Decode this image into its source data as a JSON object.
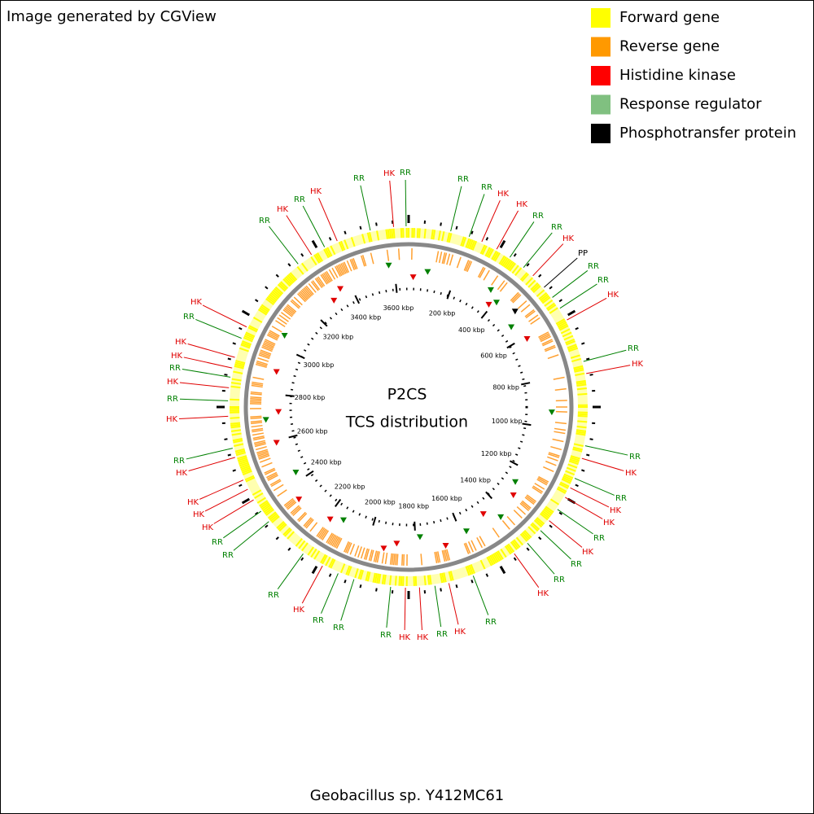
{
  "header": {
    "title": "Image generated by CGView"
  },
  "legend": {
    "items": [
      {
        "label": "Forward gene",
        "color": "#ffff00"
      },
      {
        "label": "Reverse gene",
        "color": "#ff9900"
      },
      {
        "label": "Histidine kinase",
        "color": "#ff0000"
      },
      {
        "label": "Response regulator",
        "color": "#80c080"
      },
      {
        "label": "Phosphotransfer protein",
        "color": "#000000"
      }
    ]
  },
  "center": {
    "title": "P2CS",
    "subtitle": "TCS distribution"
  },
  "footer": {
    "organism": "Geobacillus sp. Y412MC61"
  },
  "ruler": {
    "labels": [
      "200 kbp",
      "400 kbp",
      "600 kbp",
      "800 kbp",
      "1000 kbp",
      "1200 kbp",
      "1400 kbp",
      "1600 kbp",
      "1800 kbp",
      "2000 kbp",
      "2200 kbp",
      "2400 kbp",
      "2600 kbp",
      "2800 kbp",
      "3000 kbp",
      "3200 kbp",
      "3400 kbp",
      "3600 kbp"
    ]
  },
  "features": [
    {
      "label": "HK",
      "color": "#e00000"
    },
    {
      "label": "RR",
      "color": "#008000"
    },
    {
      "label": "RR",
      "color": "#008000"
    },
    {
      "label": "RR",
      "color": "#008000"
    },
    {
      "label": "HK",
      "color": "#e00000"
    },
    {
      "label": "HK",
      "color": "#e00000"
    },
    {
      "label": "RR",
      "color": "#008000"
    },
    {
      "label": "RR",
      "color": "#008000"
    },
    {
      "label": "HK",
      "color": "#e00000"
    },
    {
      "label": "PP",
      "color": "#000000"
    },
    {
      "label": "RR",
      "color": "#008000"
    },
    {
      "label": "RR",
      "color": "#008000"
    },
    {
      "label": "HK",
      "color": "#e00000"
    },
    {
      "label": "RR",
      "color": "#008000"
    },
    {
      "label": "HK",
      "color": "#e00000"
    },
    {
      "label": "RR",
      "color": "#008000"
    },
    {
      "label": "HK",
      "color": "#e00000"
    },
    {
      "label": "RR",
      "color": "#008000"
    },
    {
      "label": "HK",
      "color": "#e00000"
    },
    {
      "label": "HK",
      "color": "#e00000"
    },
    {
      "label": "RR",
      "color": "#008000"
    },
    {
      "label": "HK",
      "color": "#e00000"
    },
    {
      "label": "RR",
      "color": "#008000"
    },
    {
      "label": "RR",
      "color": "#008000"
    },
    {
      "label": "HK",
      "color": "#e00000"
    },
    {
      "label": "RR",
      "color": "#008000"
    },
    {
      "label": "HK",
      "color": "#e00000"
    },
    {
      "label": "RR",
      "color": "#008000"
    },
    {
      "label": "HK",
      "color": "#e00000"
    },
    {
      "label": "HK",
      "color": "#e00000"
    },
    {
      "label": "RR",
      "color": "#008000"
    },
    {
      "label": "RR",
      "color": "#008000"
    },
    {
      "label": "RR",
      "color": "#008000"
    },
    {
      "label": "HK",
      "color": "#e00000"
    },
    {
      "label": "RR",
      "color": "#008000"
    },
    {
      "label": "RR",
      "color": "#008000"
    },
    {
      "label": "RR",
      "color": "#008000"
    },
    {
      "label": "HK",
      "color": "#e00000"
    },
    {
      "label": "HK",
      "color": "#e00000"
    },
    {
      "label": "HK",
      "color": "#e00000"
    },
    {
      "label": "HK",
      "color": "#e00000"
    },
    {
      "label": "RR",
      "color": "#008000"
    },
    {
      "label": "HK",
      "color": "#e00000"
    },
    {
      "label": "RR",
      "color": "#008000"
    },
    {
      "label": "HK",
      "color": "#e00000"
    },
    {
      "label": "RR",
      "color": "#008000"
    },
    {
      "label": "HK",
      "color": "#e00000"
    },
    {
      "label": "HK",
      "color": "#e00000"
    },
    {
      "label": "RR",
      "color": "#008000"
    },
    {
      "label": "HK",
      "color": "#e00000"
    },
    {
      "label": "RR",
      "color": "#008000"
    },
    {
      "label": "HK",
      "color": "#e00000"
    },
    {
      "label": "RR",
      "color": "#008000"
    },
    {
      "label": "HK",
      "color": "#e00000"
    },
    {
      "label": "RR",
      "color": "#008000"
    }
  ]
}
